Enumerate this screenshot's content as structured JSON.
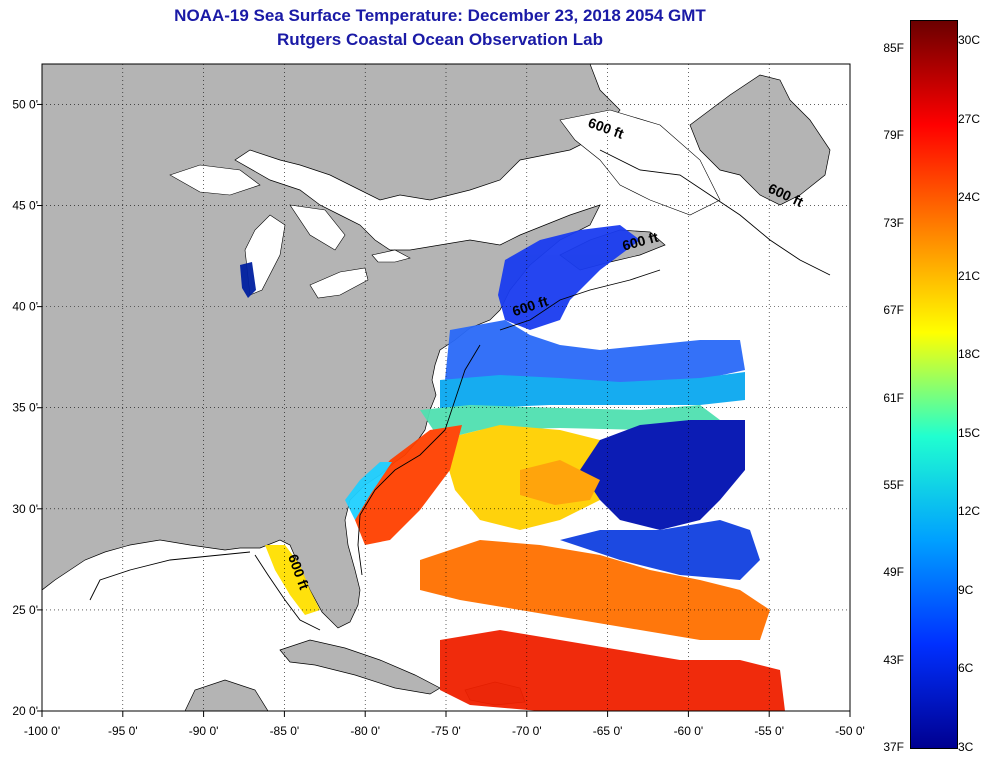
{
  "title": "NOAA-19 Sea Surface Temperature:  December 23, 2018 2054 GMT",
  "subtitle": "Rutgers Coastal Ocean Observation Lab",
  "map": {
    "lon_range": [
      -100,
      -50
    ],
    "lat_range": [
      20,
      52
    ],
    "x_ticks": [
      "-100 0'",
      "-95 0'",
      "-90 0'",
      "-85 0'",
      "-80 0'",
      "-75 0'",
      "-70 0'",
      "-65 0'",
      "-60 0'",
      "-55 0'",
      "-50 0'"
    ],
    "x_tick_values": [
      -100,
      -95,
      -90,
      -85,
      -80,
      -75,
      -70,
      -65,
      -60,
      -55,
      -50
    ],
    "y_ticks": [
      "20 0'",
      "25 0'",
      "30 0'",
      "35 0'",
      "40 0'",
      "45 0'",
      "50 0'"
    ],
    "y_tick_values": [
      20,
      25,
      30,
      35,
      40,
      45,
      50
    ],
    "depth_labels": [
      {
        "text": "600 ft",
        "lon": -65.2,
        "lat": 48.6,
        "rotation": 20
      },
      {
        "text": "600 ft",
        "lon": -54.1,
        "lat": 45.3,
        "rotation": 25
      },
      {
        "text": "600 ft",
        "lon": -62.9,
        "lat": 43.0,
        "rotation": -15
      },
      {
        "text": "600 ft",
        "lon": -69.7,
        "lat": 39.8,
        "rotation": -18
      },
      {
        "text": "600 ft",
        "lon": -84.4,
        "lat": 26.8,
        "rotation": 70
      }
    ],
    "land_color": "#b4b4b4",
    "no_data_color": "#ffffff",
    "grid": true
  },
  "colorbar": {
    "fahrenheit_labels": [
      "85F",
      "79F",
      "73F",
      "67F",
      "61F",
      "55F",
      "49F",
      "43F",
      "37F"
    ],
    "celsius_labels": [
      "30C",
      "27C",
      "24C",
      "21C",
      "18C",
      "15C",
      "12C",
      "9C",
      "6C",
      "3C"
    ],
    "colors": [
      "#6b0000",
      "#ff0000",
      "#ff8000",
      "#ffff00",
      "#20ffd0",
      "#00a0ff",
      "#0030ff",
      "#000090"
    ]
  }
}
